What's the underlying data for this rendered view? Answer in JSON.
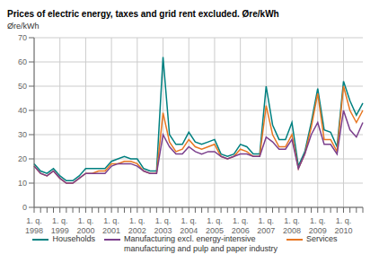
{
  "chart_data": {
    "type": "line",
    "title": "Prices of electric energy, taxes and grid rent excluded. Øre/kWh",
    "y_label": "Øre/kWh",
    "categories": [
      "1. q.\n1998",
      null,
      null,
      null,
      "1. q.\n1999",
      null,
      null,
      null,
      "1. q.\n2000",
      null,
      null,
      null,
      "1. q.\n2001",
      null,
      null,
      null,
      "1. q.\n2002",
      null,
      null,
      null,
      "1. q.\n2003",
      null,
      null,
      null,
      "1. q.\n2004",
      null,
      null,
      null,
      "1. q.\n2005",
      null,
      null,
      null,
      "1. q.\n2006",
      null,
      null,
      null,
      "1. q.\n2007",
      null,
      null,
      null,
      "1. q.\n2008",
      null,
      null,
      null,
      "1. q.\n2009",
      null,
      null,
      null,
      "1. q.\n2010",
      null,
      null,
      null
    ],
    "series": [
      {
        "name": "Households",
        "color": "#008080",
        "values": [
          18,
          15,
          14,
          16,
          13,
          11,
          11,
          13,
          16,
          16,
          16,
          16,
          19,
          20,
          21,
          20,
          20,
          16,
          15,
          15,
          62,
          30,
          26,
          26,
          31,
          27,
          26,
          27,
          28,
          22,
          21,
          22,
          26,
          25,
          22,
          22,
          50,
          34,
          28,
          28,
          35,
          17,
          23,
          35,
          49,
          32,
          31,
          25,
          52,
          44,
          38,
          43
        ]
      },
      {
        "name": "Services",
        "color": "#E87722",
        "values": [
          17,
          14,
          13,
          15,
          12,
          10,
          10,
          12,
          14,
          14,
          15,
          15,
          18,
          18,
          19,
          19,
          18,
          15,
          14,
          14,
          39,
          27,
          23,
          24,
          28,
          25,
          24,
          25,
          26,
          21,
          20,
          21,
          24,
          23,
          21,
          21,
          42,
          30,
          25,
          25,
          30,
          16,
          22,
          33,
          47,
          28,
          28,
          23,
          50,
          40,
          35,
          40
        ]
      },
      {
        "name": "Manufacturing excl. energy-intensive\nmanufacturing and pulp and paper industry",
        "color": "#7B3F8C",
        "values": [
          17,
          14,
          13,
          15,
          12,
          10,
          10,
          12,
          14,
          14,
          14,
          14,
          17,
          18,
          18,
          18,
          17,
          15,
          14,
          14,
          30,
          25,
          22,
          22,
          25,
          23,
          22,
          23,
          23,
          21,
          20,
          21,
          22,
          22,
          21,
          21,
          29,
          27,
          24,
          24,
          28,
          16,
          22,
          30,
          35,
          26,
          26,
          22,
          40,
          32,
          29,
          35
        ]
      }
    ],
    "ylim": [
      0,
      70
    ],
    "yticks": [
      0,
      10,
      20,
      30,
      40,
      50,
      60,
      70
    ],
    "grid": true,
    "legend": "bottom"
  }
}
